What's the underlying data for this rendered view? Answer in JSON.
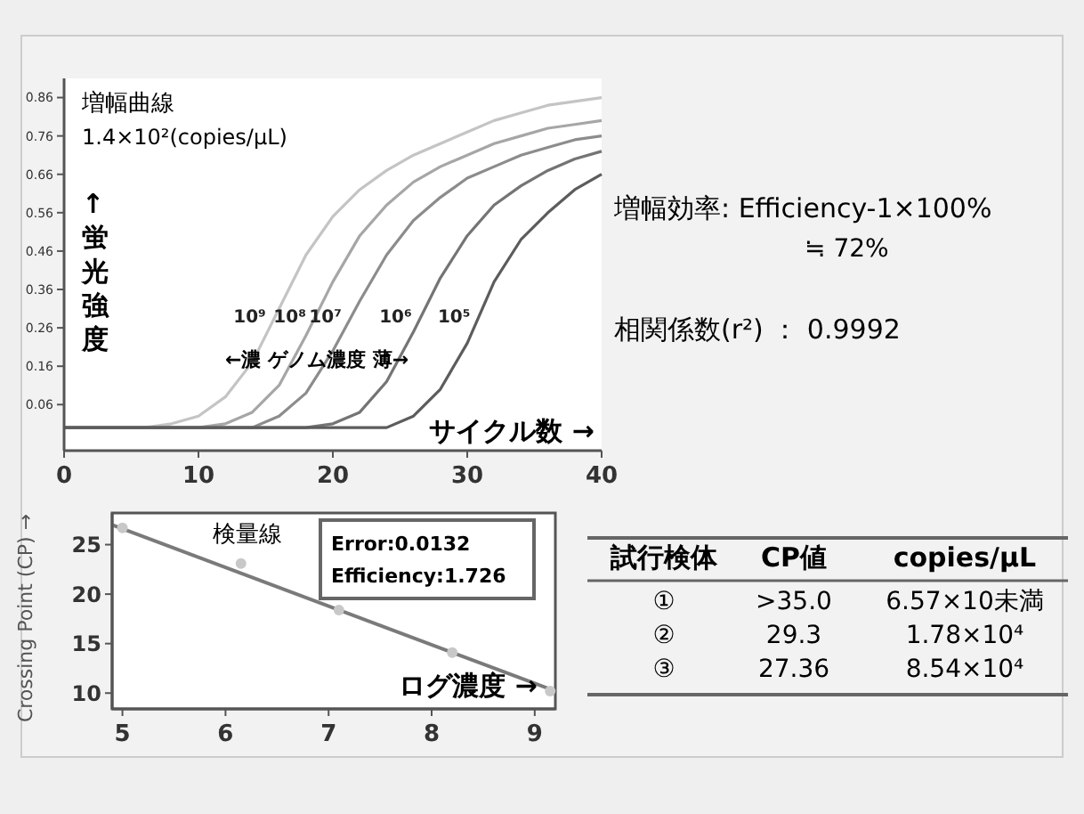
{
  "chart_data": [
    {
      "type": "line",
      "ylabel": "↑蛍光強度",
      "xlabel": "サイクル数 →",
      "annotations": [
        "増幅曲線",
        "1.4×10²(copies/μL)",
        "←濃 ゲノム濃度 薄→"
      ],
      "x": [
        0,
        2,
        4,
        6,
        8,
        10,
        12,
        14,
        16,
        18,
        20,
        22,
        24,
        26,
        28,
        30,
        32,
        34,
        36,
        38,
        40
      ],
      "series": [
        {
          "name": "10⁹",
          "color": "#c4c4c4",
          "values": [
            0,
            0,
            0,
            0,
            0.01,
            0.03,
            0.08,
            0.17,
            0.31,
            0.45,
            0.55,
            0.62,
            0.67,
            0.71,
            0.74,
            0.77,
            0.8,
            0.82,
            0.84,
            0.85,
            0.86
          ]
        },
        {
          "name": "10⁸",
          "color": "#a6a6a6",
          "values": [
            0,
            0,
            0,
            0,
            0,
            0,
            0.01,
            0.04,
            0.11,
            0.24,
            0.38,
            0.5,
            0.58,
            0.64,
            0.68,
            0.71,
            0.74,
            0.76,
            0.78,
            0.79,
            0.8
          ]
        },
        {
          "name": "10⁷",
          "color": "#8c8c8c",
          "values": [
            0,
            0,
            0,
            0,
            0,
            0,
            0,
            0,
            0.03,
            0.09,
            0.2,
            0.33,
            0.45,
            0.54,
            0.6,
            0.65,
            0.68,
            0.71,
            0.73,
            0.75,
            0.76
          ]
        },
        {
          "name": "10⁶",
          "color": "#747474",
          "values": [
            0,
            0,
            0,
            0,
            0,
            0,
            0,
            0,
            0,
            0,
            0.01,
            0.04,
            0.12,
            0.25,
            0.39,
            0.5,
            0.58,
            0.63,
            0.67,
            0.7,
            0.72
          ]
        },
        {
          "name": "10⁵",
          "color": "#5c5c5c",
          "values": [
            0,
            0,
            0,
            0,
            0,
            0,
            0,
            0,
            0,
            0,
            0,
            0,
            0,
            0.03,
            0.1,
            0.22,
            0.38,
            0.49,
            0.56,
            0.62,
            0.66
          ]
        }
      ],
      "xlim": [
        0,
        40
      ],
      "xticks": [
        0,
        10,
        20,
        30,
        40
      ],
      "ylim": [
        -0.06,
        0.91
      ],
      "yticks": [
        0.06,
        0.16,
        0.26,
        0.36,
        0.46,
        0.56,
        0.66,
        0.76,
        0.86
      ],
      "legend": false,
      "grid": false
    },
    {
      "type": "scatter",
      "ylabel": "Crossing Point (CP) →",
      "xlabel": "ログ濃度 →",
      "annotations": [
        "検量線",
        "Error:0.0132",
        "Efficiency:1.726"
      ],
      "series": [
        {
          "type": "scatter",
          "color": "#c8c8c8",
          "x": [
            5.0,
            6.15,
            7.1,
            8.2,
            9.15
          ],
          "values": [
            26.7,
            23.1,
            18.4,
            14.1,
            10.2
          ],
          "marker": "circle"
        },
        {
          "type": "line",
          "color": "#7a7a7a",
          "x": [
            4.9,
            9.2
          ],
          "values": [
            27.0,
            10.2
          ]
        }
      ],
      "xlim": [
        4.9,
        9.2
      ],
      "xticks": [
        5,
        6,
        7,
        8,
        9
      ],
      "ylim": [
        8.4,
        28.2
      ],
      "yticks": [
        10,
        15,
        20,
        25
      ],
      "legend": false,
      "grid": false
    },
    {
      "type": "other",
      "annotations": [
        "増幅効率: Efficiency-1×100%",
        "≒ 72%",
        "相関係数(r²) ： 0.9992",
        "試行検体",
        "CP値",
        "copies/μL",
        "①",
        ">35.0",
        "6.57×10未満",
        "②",
        "29.3",
        "1.78×10⁴",
        "③",
        "27.36",
        "8.54×10⁴"
      ]
    }
  ]
}
